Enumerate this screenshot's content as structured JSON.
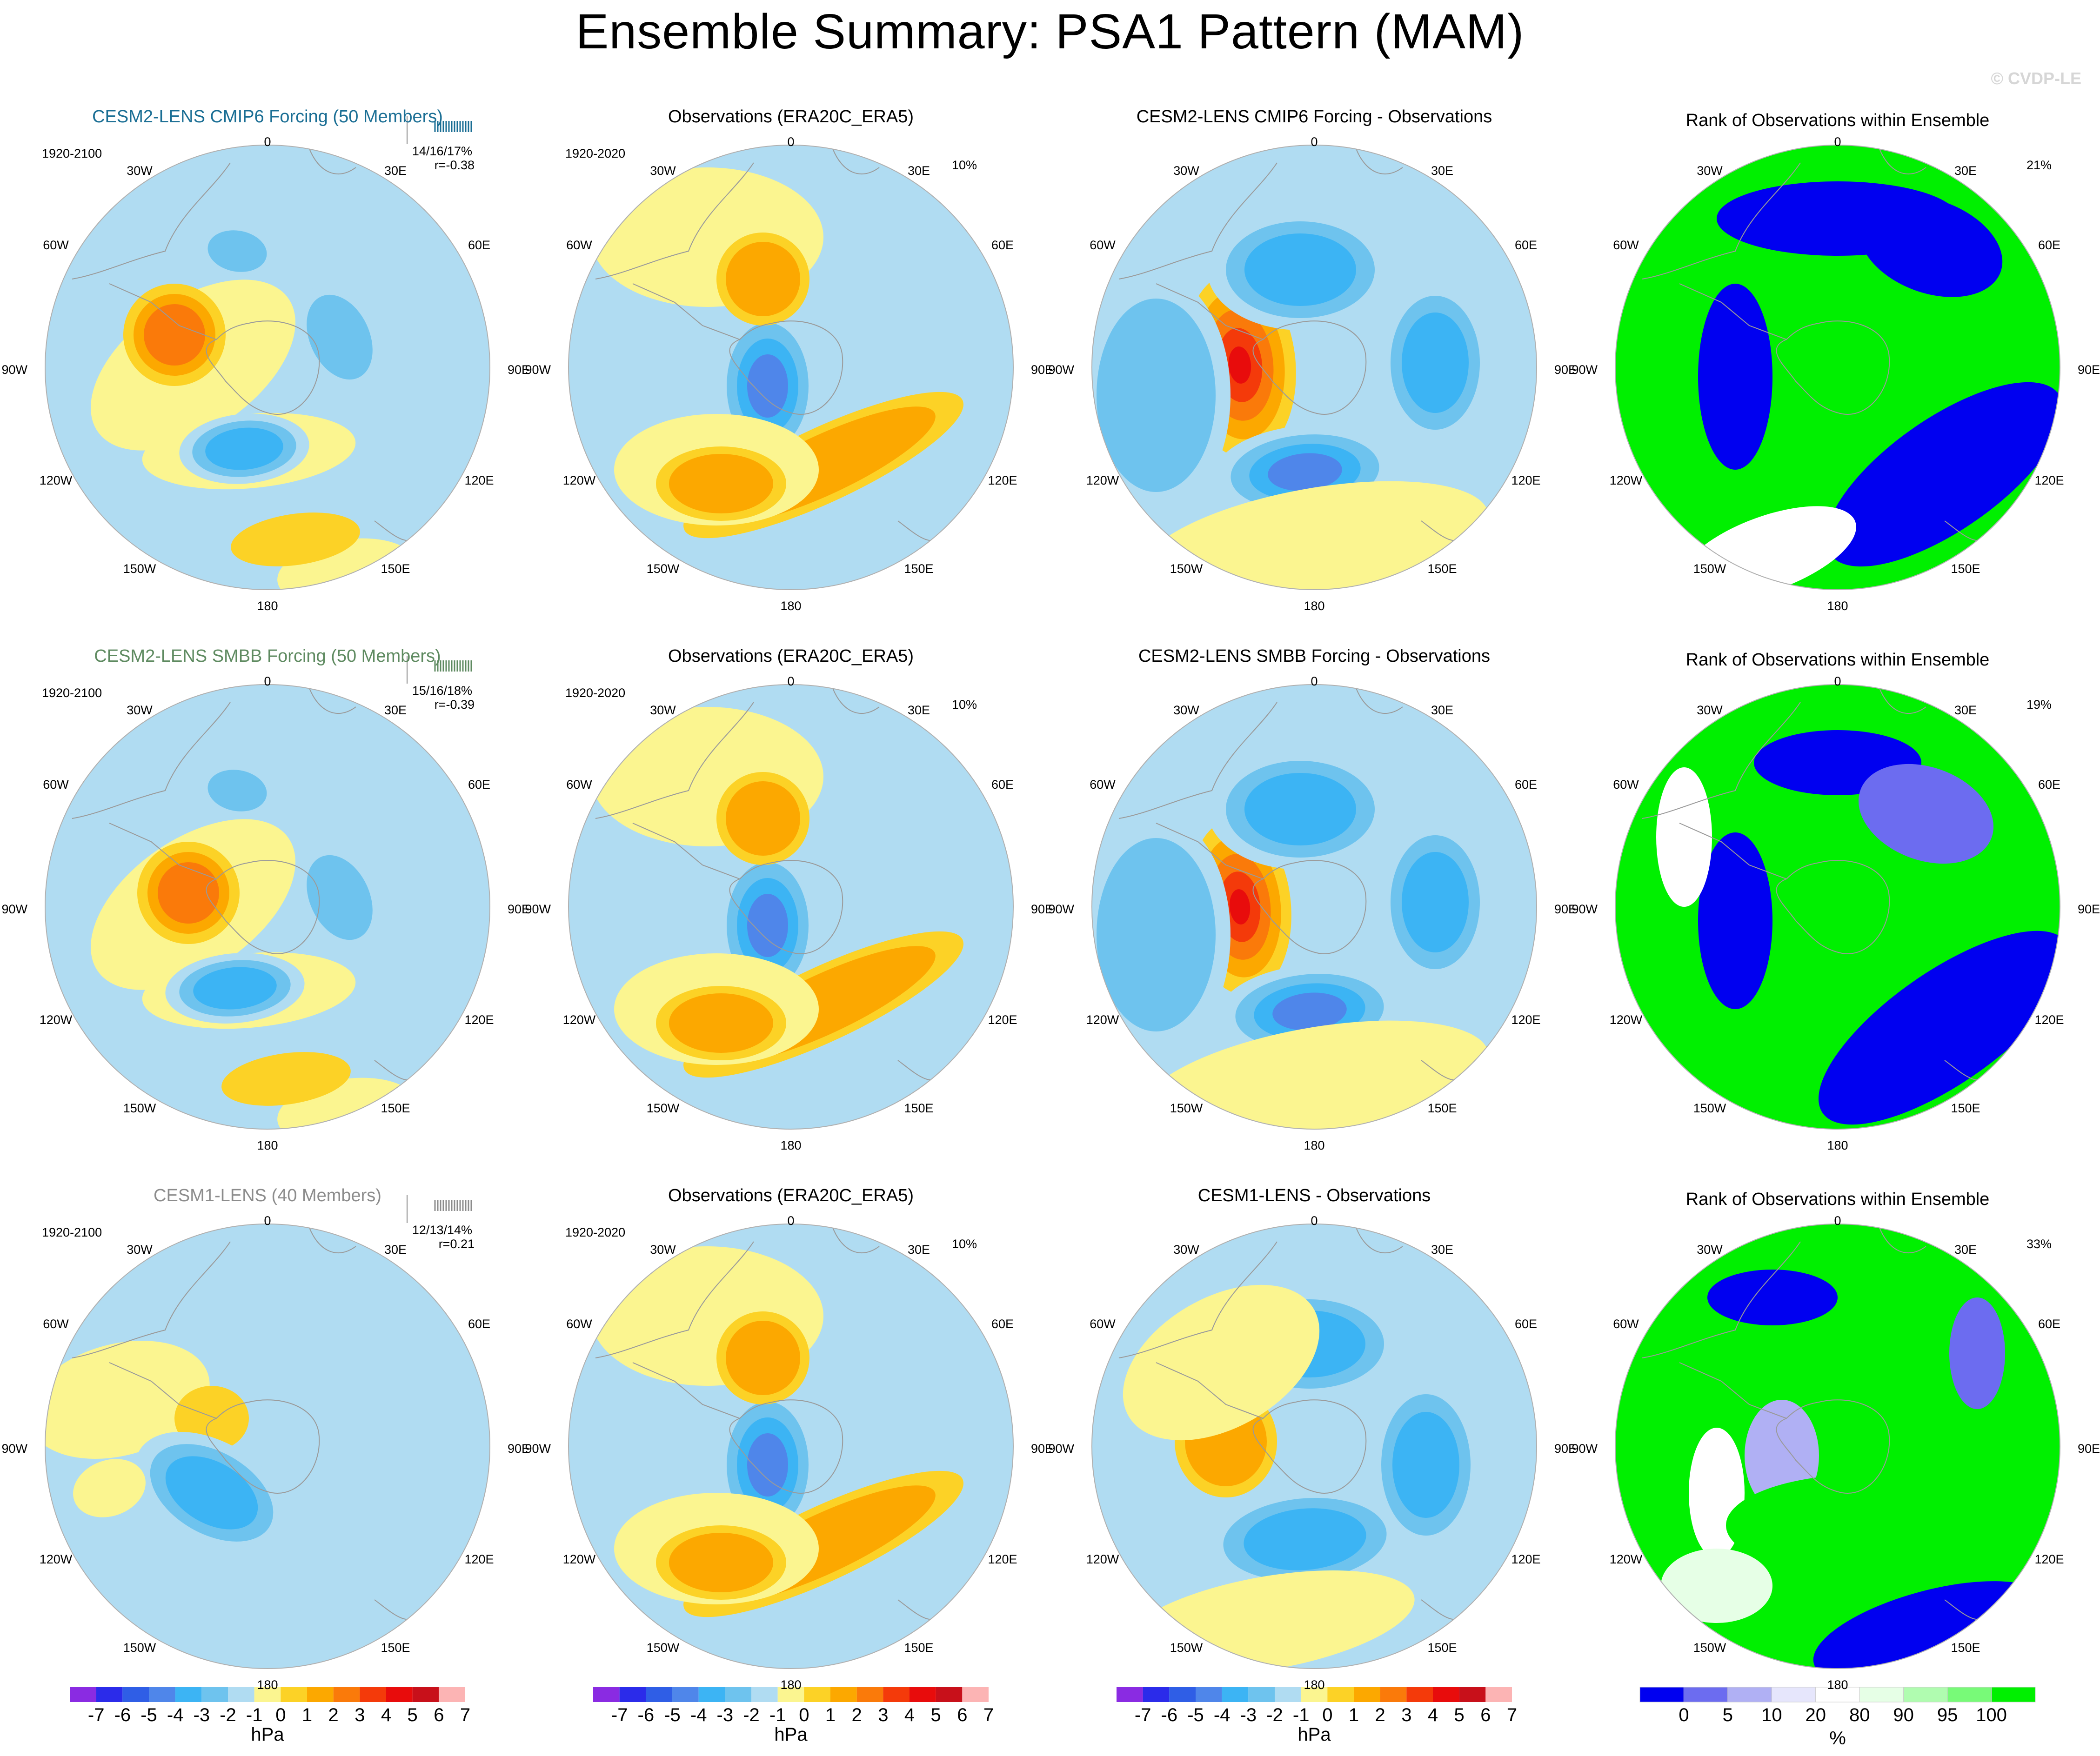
{
  "title": "Ensemble Summary: PSA1 Pattern (MAM)",
  "watermark": "© CVDP-LE",
  "colors": {
    "mean_levels": [
      "#8a2be2",
      "#2b2bea",
      "#2f5ee6",
      "#4f86ea",
      "#3cb4f4",
      "#6ec3ee",
      "#b0dcf2",
      "#fbf590",
      "#fcd226",
      "#fca800",
      "#fa7a0a",
      "#f43a0a",
      "#e80c0c",
      "#c8101a",
      "#fcb4b4"
    ],
    "rank_levels": [
      "#0000f0",
      "#6c6cf0",
      "#b0b0f4",
      "#e6e6fc",
      "#ffffff",
      "#e6ffe6",
      "#b0fcb0",
      "#78fa78",
      "#00f000"
    ],
    "title_row1": "#1a6e94",
    "title_row2": "#5e8a60",
    "title_row3": "#8c8c8c"
  },
  "lon_labels": {
    "n0": "0",
    "e30": "30E",
    "e60": "60E",
    "e90": "90E",
    "e120": "120E",
    "e150": "150E",
    "s180": "180",
    "w150": "150W",
    "w120": "120W",
    "w90": "90W",
    "w60": "60W",
    "w30": "30W"
  },
  "rows": [
    {
      "model_title": "CESM2-LENS CMIP6 Forcing (50 Members)",
      "model_period": "1920-2100",
      "model_stats": "14/16/17%",
      "model_r": "r=-0.38",
      "obs_title": "Observations (ERA20C_ERA5)",
      "obs_period": "1920-2020",
      "obs_pct": "10%",
      "diff_title": "CESM2-LENS CMIP6 Forcing - Observations",
      "rank_title": "Rank of Observations within Ensemble",
      "rank_pct": "21%"
    },
    {
      "model_title": "CESM2-LENS SMBB Forcing (50 Members)",
      "model_period": "1920-2100",
      "model_stats": "15/16/18%",
      "model_r": "r=-0.39",
      "obs_title": "Observations (ERA20C_ERA5)",
      "obs_period": "1920-2020",
      "obs_pct": "10%",
      "diff_title": "CESM2-LENS SMBB Forcing - Observations",
      "rank_title": "Rank of Observations within Ensemble",
      "rank_pct": "19%"
    },
    {
      "model_title": "CESM1-LENS (40 Members)",
      "model_period": "1920-2100",
      "model_stats": "12/13/14%",
      "model_r": "r=0.21",
      "obs_title": "Observations (ERA20C_ERA5)",
      "obs_period": "1920-2020",
      "obs_pct": "10%",
      "diff_title": "CESM1-LENS - Observations",
      "rank_title": "Rank of Observations within Ensemble",
      "rank_pct": "33%"
    }
  ],
  "chart_data": {
    "type": "heatmap",
    "description_title": "Ensemble Summary: PSA1 Pattern (MAM)",
    "projection": "south polar stereographic",
    "colorbars": [
      {
        "unit": "hPa",
        "tick_labels": [
          "-7",
          "-6",
          "-5",
          "-4",
          "-3",
          "-2",
          "-1",
          "0",
          "1",
          "2",
          "3",
          "4",
          "5",
          "6",
          "7"
        ],
        "levels": [
          -7,
          -6,
          -5,
          -4,
          -3,
          -2,
          -1,
          0,
          1,
          2,
          3,
          4,
          5,
          6,
          7
        ]
      },
      {
        "unit": "hPa",
        "tick_labels": [
          "-7",
          "-6",
          "-5",
          "-4",
          "-3",
          "-2",
          "-1",
          "0",
          "1",
          "2",
          "3",
          "4",
          "5",
          "6",
          "7"
        ],
        "levels": [
          -7,
          -6,
          -5,
          -4,
          -3,
          -2,
          -1,
          0,
          1,
          2,
          3,
          4,
          5,
          6,
          7
        ]
      },
      {
        "unit": "hPa",
        "tick_labels": [
          "-7",
          "-6",
          "-5",
          "-4",
          "-3",
          "-2",
          "-1",
          "0",
          "1",
          "2",
          "3",
          "4",
          "5",
          "6",
          "7"
        ],
        "levels": [
          -7,
          -6,
          -5,
          -4,
          -3,
          -2,
          -1,
          0,
          1,
          2,
          3,
          4,
          5,
          6,
          7
        ]
      },
      {
        "unit": "%",
        "tick_labels": [
          "0",
          "5",
          "10",
          "20",
          "80",
          "90",
          "95",
          "100"
        ],
        "levels": [
          0,
          5,
          10,
          20,
          80,
          90,
          95,
          100
        ]
      }
    ],
    "panels": {
      "ensemble_mean": [
        {
          "anomalies": [
            {
              "lon": -90,
              "lat": -55,
              "value": 3.5
            },
            {
              "lon": -150,
              "lat": -63,
              "value": -3.5
            },
            {
              "lon": 80,
              "lat": -52,
              "value": -2
            },
            {
              "lon": -30,
              "lat": -48,
              "value": -2
            },
            {
              "lon": 175,
              "lat": -42,
              "value": 1.5
            }
          ]
        },
        {
          "anomalies": [
            {
              "lon": -90,
              "lat": -55,
              "value": 3
            },
            {
              "lon": -150,
              "lat": -63,
              "value": -3
            },
            {
              "lon": 80,
              "lat": -52,
              "value": -2
            },
            {
              "lon": -30,
              "lat": -48,
              "value": -2
            },
            {
              "lon": 175,
              "lat": -42,
              "value": 1.5
            }
          ]
        },
        {
          "anomalies": [
            {
              "lon": -90,
              "lat": -55,
              "value": 2
            },
            {
              "lon": -120,
              "lat": -58,
              "value": -3
            }
          ]
        }
      ],
      "observations": {
        "anomalies": [
          {
            "lon": -100,
            "lat": -52,
            "value": -4
          },
          {
            "lon": -15,
            "lat": -52,
            "value": 2
          },
          {
            "lon": 155,
            "lat": -45,
            "value": 1
          },
          {
            "lon": -160,
            "lat": -42,
            "value": 2
          }
        ]
      },
      "difference": [
        {
          "anomalies": [
            {
              "lon": -85,
              "lat": -50,
              "value": 6
            },
            {
              "lon": -165,
              "lat": -58,
              "value": -4
            },
            {
              "lon": 20,
              "lat": -55,
              "value": -3
            },
            {
              "lon": 95,
              "lat": -55,
              "value": -3
            },
            {
              "lon": 165,
              "lat": -38,
              "value": 1.5
            }
          ]
        },
        {
          "anomalies": [
            {
              "lon": -85,
              "lat": -50,
              "value": 5.5
            },
            {
              "lon": -165,
              "lat": -58,
              "value": -3.5
            },
            {
              "lon": 20,
              "lat": -55,
              "value": -3
            },
            {
              "lon": 95,
              "lat": -55,
              "value": -3
            },
            {
              "lon": 165,
              "lat": -38,
              "value": 1.5
            }
          ]
        },
        {
          "anomalies": [
            {
              "lon": -85,
              "lat": -55,
              "value": 2
            },
            {
              "lon": -165,
              "lat": -58,
              "value": -3
            },
            {
              "lon": 20,
              "lat": -55,
              "value": -3
            },
            {
              "lon": 95,
              "lat": -52,
              "value": -3
            }
          ]
        }
      ]
    }
  }
}
